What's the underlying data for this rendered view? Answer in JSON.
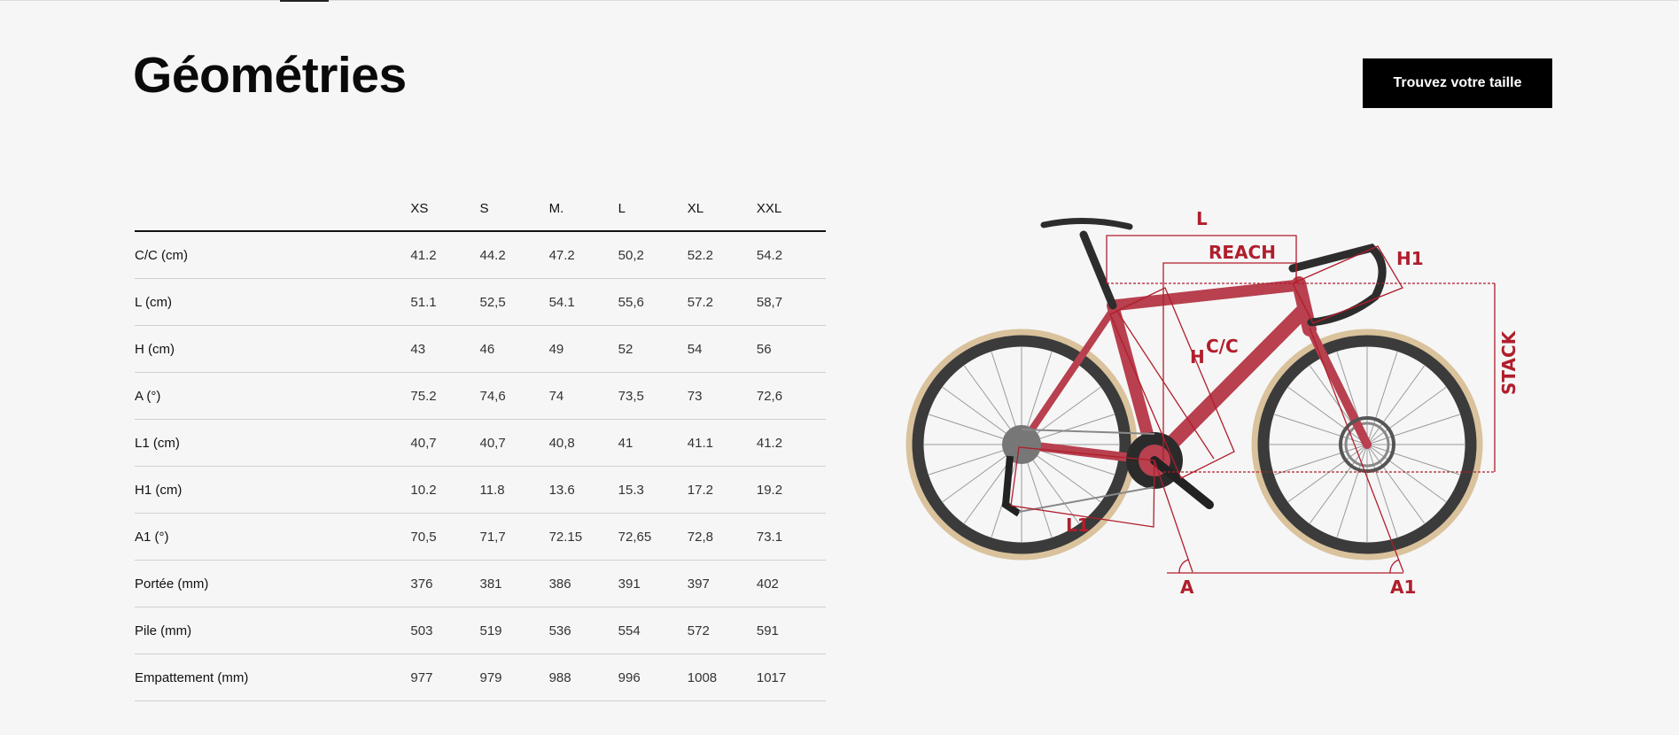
{
  "page": {
    "title": "Géométries",
    "cta_label": "Trouvez votre taille"
  },
  "table": {
    "columns": [
      "XS",
      "S",
      "M.",
      "L",
      "XL",
      "XXL"
    ],
    "rows": [
      {
        "label": "C/C (cm)",
        "values": [
          "41.2",
          "44.2",
          "47.2",
          "50,2",
          "52.2",
          "54.2"
        ]
      },
      {
        "label": "L (cm)",
        "values": [
          "51.1",
          "52,5",
          "54.1",
          "55,6",
          "57.2",
          "58,7"
        ]
      },
      {
        "label": "H (cm)",
        "values": [
          "43",
          "46",
          "49",
          "52",
          "54",
          "56"
        ]
      },
      {
        "label": "A (°)",
        "values": [
          "75.2",
          "74,6",
          "74",
          "73,5",
          "73",
          "72,6"
        ]
      },
      {
        "label": "L1 (cm)",
        "values": [
          "40,7",
          "40,7",
          "40,8",
          "41",
          "41.1",
          "41.2"
        ]
      },
      {
        "label": "H1 (cm)",
        "values": [
          "10.2",
          "11.8",
          "13.6",
          "15.3",
          "17.2",
          "19.2"
        ]
      },
      {
        "label": "A1 (°)",
        "values": [
          "70,5",
          "71,7",
          "72.15",
          "72,65",
          "72,8",
          "73.1"
        ]
      },
      {
        "label": "Portée (mm)",
        "values": [
          "376",
          "381",
          "386",
          "391",
          "397",
          "402"
        ]
      },
      {
        "label": "Pile (mm)",
        "values": [
          "503",
          "519",
          "536",
          "554",
          "572",
          "591"
        ]
      },
      {
        "label": "Empattement (mm)",
        "values": [
          "977",
          "979",
          "988",
          "996",
          "1008",
          "1017"
        ]
      }
    ]
  },
  "diagram": {
    "labels": {
      "L": "L",
      "reach": "REACH",
      "h1": "H1",
      "cc": "C/C",
      "h": "H",
      "stack": "STACK",
      "l1": "L1",
      "a": "A",
      "a1": "A1"
    },
    "colors": {
      "dimension": "#b01e2c",
      "frame": "#b8404f",
      "tire": "#d9c29c",
      "rim": "#3b3b3b"
    }
  }
}
